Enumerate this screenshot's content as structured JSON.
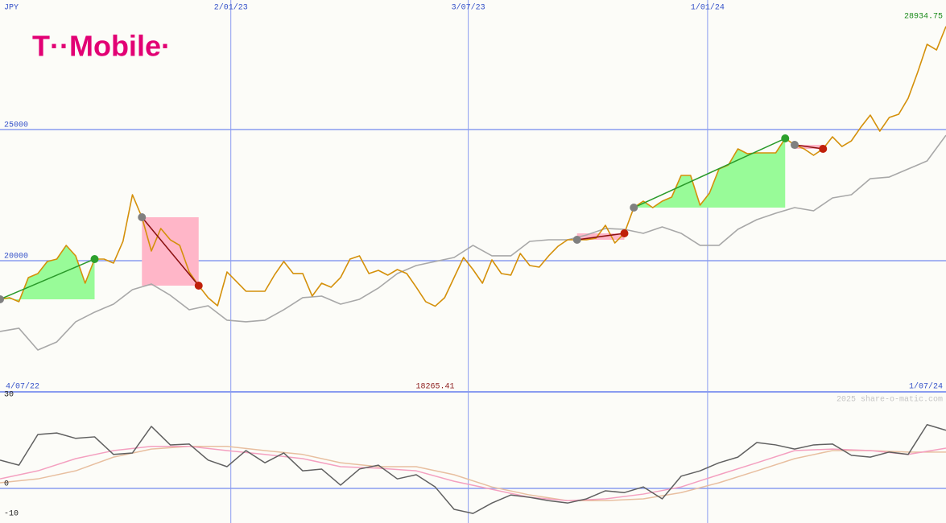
{
  "logo": "T··Mobile·",
  "chart_data": [
    {
      "type": "line",
      "currency_label": "JPY",
      "x_start_label": "4/07/22",
      "x_end_label": "1/07/24",
      "xlim": [
        0,
        100
      ],
      "xticks": [
        {
          "value": 24.4,
          "label": "2/01/23"
        },
        {
          "value": 49.5,
          "label": "3/07/23"
        },
        {
          "value": 74.8,
          "label": "1/01/24"
        }
      ],
      "ylim": [
        15000,
        29940
      ],
      "yticks": [
        20000,
        25000
      ],
      "grid": true,
      "last_index": 100,
      "min_index": 46,
      "series": [
        {
          "color": "#d4900a",
          "values": [
            18529,
            18590,
            18437,
            19357,
            19510,
            19970,
            20062,
            20584,
            20185,
            19142,
            20062,
            20062,
            19909,
            20737,
            22516,
            21657,
            20369,
            21228,
            20798,
            20584,
            19571,
            19050,
            18590,
            18283,
            19571,
            19203,
            18835,
            18835,
            18835,
            19449,
            19970,
            19510,
            19510,
            18651,
            19142,
            18989,
            19357,
            20062,
            20185,
            19510,
            19633,
            19449,
            19663,
            19510,
            18989,
            18437,
            18265.41,
            18590,
            19357,
            20123,
            19663,
            19142,
            20031,
            19510,
            19449,
            20277,
            19817,
            19755,
            20185,
            20553,
            20798,
            20798,
            20798,
            20860,
            21350,
            20676,
            21044,
            22025,
            22270,
            22025,
            22270,
            22424,
            23252,
            23252,
            22117,
            22577,
            23497,
            23651,
            24264,
            24080,
            24111,
            24111,
            24111,
            24663,
            24417,
            24264,
            24019,
            24264,
            24724,
            24356,
            24571,
            25092,
            25552,
            24939,
            25460,
            25583,
            26196,
            27178,
            28251,
            28036,
            28934.75
          ]
        },
        {
          "color": "#a8a8a8",
          "values": [
            17302,
            17425,
            16596,
            16903,
            17670,
            18038,
            18345,
            18897,
            19111,
            18682,
            18130,
            18283,
            17731,
            17670,
            17731,
            18130,
            18590,
            18651,
            18345,
            18529,
            18958,
            19510,
            19817,
            19970,
            20123,
            20584,
            20185,
            20185,
            20737,
            20798,
            20798,
            20982,
            21228,
            21197,
            21044,
            21289,
            21044,
            20584,
            20584,
            21197,
            21565,
            21810,
            22025,
            21902,
            22393,
            22516,
            23129,
            23190,
            23497,
            23804,
            24785
          ]
        }
      ],
      "signals": [
        {
          "start": 0,
          "end": 10,
          "color": "#98fb98",
          "line_color": "#2a9a2a",
          "end_color": "#2ca02c"
        },
        {
          "start": 15,
          "end": 21,
          "color": "#ffb6c8",
          "line_color": "#8b1010",
          "end_color": "#c0200a"
        },
        {
          "start": 61,
          "end": 66,
          "color": "#ffb6c8",
          "line_color": "#8b1010",
          "end_color": "#c0200a"
        },
        {
          "start": 67,
          "end": 83,
          "color": "#98fb98",
          "line_color": "#2a9a2a",
          "end_color": "#2ca02c"
        },
        {
          "start": 84,
          "end": 87,
          "color": "#ffb6c8",
          "line_color": "#8b1010",
          "end_color": "#c0200a"
        }
      ]
    },
    {
      "type": "line",
      "watermark": "2025 share-o-matic.com",
      "ylim": [
        -11.6,
        32.4
      ],
      "yticks": [
        30,
        0,
        -10
      ],
      "series": [
        {
          "color": "#e8bfa0",
          "values": [
            1.9,
            3.2,
            5.9,
            10.5,
            13.2,
            14.1,
            14.1,
            12.7,
            11.4,
            8.6,
            7.3,
            7.3,
            4.6,
            0.5,
            -2.2,
            -4.1,
            -4.1,
            -3.5,
            -1.4,
            1.9,
            5.9,
            10.0,
            12.7,
            12.7,
            12.2,
            12.2
          ]
        },
        {
          "color": "#f4a0c0",
          "values": [
            3.2,
            5.9,
            10.0,
            12.7,
            14.1,
            14.1,
            12.7,
            11.4,
            10.0,
            7.3,
            6.8,
            5.9,
            2.4,
            -0.3,
            -3.0,
            -4.1,
            -3.5,
            -1.9,
            0.5,
            4.6,
            8.6,
            12.7,
            13.2,
            12.7,
            11.4,
            13.5
          ]
        },
        {
          "color": "#606060",
          "values": [
            9.5,
            7.8,
            18.1,
            18.6,
            16.8,
            17.3,
            11.4,
            11.9,
            20.8,
            14.6,
            14.9,
            9.5,
            7.3,
            12.7,
            8.6,
            11.9,
            5.9,
            6.5,
            1.1,
            6.5,
            7.8,
            3.2,
            4.6,
            0.5,
            -7.0,
            -8.4,
            -4.9,
            -2.2,
            -3.0,
            -4.1,
            -4.9,
            -3.5,
            -0.8,
            -1.4,
            0.5,
            -3.5,
            4.1,
            5.9,
            8.6,
            10.5,
            15.4,
            14.6,
            13.2,
            14.6,
            14.9,
            11.1,
            10.5,
            12.2,
            11.4,
            21.4,
            19.5
          ]
        }
      ]
    }
  ]
}
